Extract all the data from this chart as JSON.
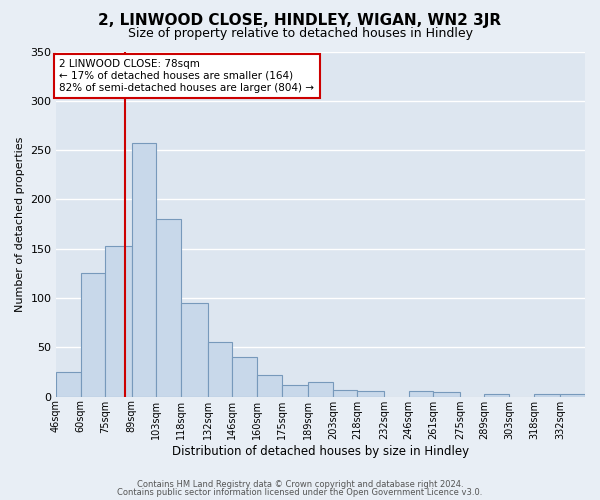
{
  "title": "2, LINWOOD CLOSE, HINDLEY, WIGAN, WN2 3JR",
  "subtitle": "Size of property relative to detached houses in Hindley",
  "xlabel": "Distribution of detached houses by size in Hindley",
  "ylabel": "Number of detached properties",
  "bar_color": "#c8d8ea",
  "bar_edge_color": "#7799bb",
  "bg_color": "#dde6f0",
  "fig_bg_color": "#e8eef5",
  "grid_color": "#ffffff",
  "categories": [
    "46sqm",
    "60sqm",
    "75sqm",
    "89sqm",
    "103sqm",
    "118sqm",
    "132sqm",
    "146sqm",
    "160sqm",
    "175sqm",
    "189sqm",
    "203sqm",
    "218sqm",
    "232sqm",
    "246sqm",
    "261sqm",
    "275sqm",
    "289sqm",
    "303sqm",
    "318sqm",
    "332sqm"
  ],
  "values": [
    25,
    125,
    153,
    257,
    180,
    95,
    55,
    40,
    22,
    12,
    15,
    7,
    6,
    0,
    6,
    5,
    0,
    3,
    0,
    3,
    3
  ],
  "bin_edges": [
    39,
    53,
    67,
    82,
    96,
    110,
    125,
    139,
    153,
    167,
    182,
    196,
    210,
    225,
    239,
    253,
    268,
    282,
    296,
    310,
    325,
    339
  ],
  "red_line_x": 78,
  "annotation_line1": "2 LINWOOD CLOSE: 78sqm",
  "annotation_line2": "← 17% of detached houses are smaller (164)",
  "annotation_line3": "82% of semi-detached houses are larger (804) →",
  "ylim_max": 350,
  "yticks": [
    0,
    50,
    100,
    150,
    200,
    250,
    300,
    350
  ],
  "footer1": "Contains HM Land Registry data © Crown copyright and database right 2024.",
  "footer2": "Contains public sector information licensed under the Open Government Licence v3.0."
}
